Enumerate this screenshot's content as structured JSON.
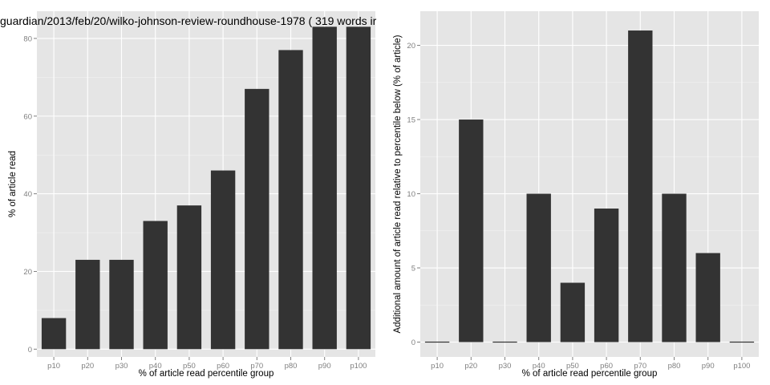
{
  "colors": {
    "bar": "#333333",
    "panel": "#e5e5e5",
    "grid": "#ffffff"
  },
  "chart_data": [
    {
      "type": "bar",
      "title": "guardian/2013/feb/20/wilko-johnson-review-roundhouse-1978 ( 319 words ir",
      "xlabel": "% of article read percentile group",
      "ylabel": "% of article read",
      "categories": [
        "p10",
        "p20",
        "p30",
        "p40",
        "p50",
        "p60",
        "p70",
        "p80",
        "p90",
        "p100"
      ],
      "values": [
        8,
        23,
        23,
        33,
        37,
        46,
        67,
        77,
        83,
        83
      ],
      "ylim": [
        -2,
        87
      ],
      "yticks": [
        0,
        20,
        40,
        60,
        80
      ],
      "grid": true
    },
    {
      "type": "bar",
      "title": "",
      "xlabel": "% of article read percentile group",
      "ylabel": "Additional amount of article read relative to percentile below (% of article)",
      "categories": [
        "p10",
        "p20",
        "p30",
        "p40",
        "p50",
        "p60",
        "p70",
        "p80",
        "p90",
        "p100"
      ],
      "values": [
        0,
        15,
        0,
        10,
        4,
        9,
        21,
        10,
        6,
        0
      ],
      "ylim": [
        -1,
        22.3
      ],
      "yticks": [
        0,
        5,
        10,
        15,
        20
      ],
      "grid": true
    }
  ]
}
